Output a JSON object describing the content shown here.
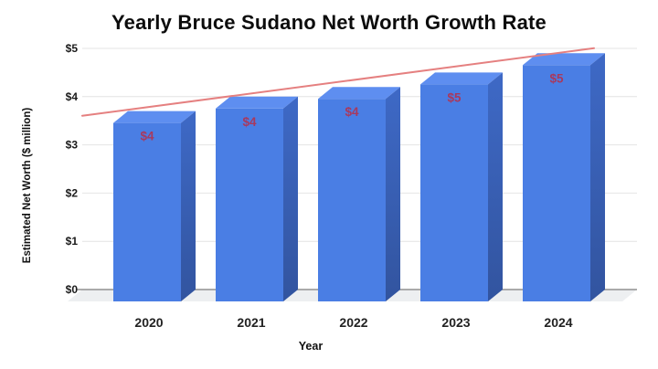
{
  "title": "Yearly Bruce Sudano Net Worth Growth Rate",
  "chart_data": {
    "type": "bar",
    "style": "3d-column",
    "title": "Yearly Bruce Sudano Net Worth Growth Rate",
    "xlabel": "Year",
    "ylabel": "Estimated Net Worth ($ million)",
    "categories": [
      "2020",
      "2021",
      "2022",
      "2023",
      "2024"
    ],
    "values": [
      3.7,
      4.0,
      4.2,
      4.5,
      4.9
    ],
    "data_labels": [
      "$4",
      "$4",
      "$4",
      "$5",
      "$5"
    ],
    "y_ticks": [
      "$0",
      "$1",
      "$2",
      "$3",
      "$4",
      "$5"
    ],
    "y_tick_values": [
      0,
      1,
      2,
      3,
      4,
      5
    ],
    "ylim": [
      0,
      5
    ],
    "grid": true,
    "legend": false,
    "trendline": {
      "start_value": 3.85,
      "end_value": 5.25
    }
  },
  "colors": {
    "bar_front": "#4a7ee4",
    "bar_top": "#5e8ef0",
    "bar_side_top": "#3e69c6",
    "bar_side_bottom": "#32549f",
    "data_label": "#a8395e",
    "trend_line": "#e58080",
    "gridline": "#e4e4e4",
    "axis_line": "#909090",
    "floor": "#edeff1",
    "tick_text": "#1a1a1a",
    "year_text": "#222222"
  }
}
